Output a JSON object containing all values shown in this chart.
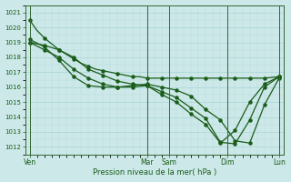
{
  "xlabel": "Pression niveau de la mer( hPa )",
  "ylim": [
    1011.5,
    1021.5
  ],
  "yticks": [
    1012,
    1013,
    1014,
    1015,
    1016,
    1017,
    1018,
    1019,
    1020,
    1021
  ],
  "bg_color": "#cce8e8",
  "grid_major_color": "#aad4d4",
  "grid_minor_color": "#bbdddd",
  "line_color": "#1a5c1a",
  "spine_color": "#336633",
  "xlim": [
    -0.3,
    17.3
  ],
  "xtick_positions": [
    0.0,
    8.0,
    9.5,
    13.5,
    17.0
  ],
  "xtick_labels": [
    "Ven",
    "Mar",
    "Sam",
    "Dim",
    "Lun"
  ],
  "vline_positions": [
    0.0,
    8.0,
    9.5,
    13.5,
    17.0
  ],
  "line1_x": [
    0,
    0.5,
    1.0,
    1.5,
    2.0,
    2.5,
    3.0,
    3.5,
    4.0,
    4.5,
    5.0,
    5.5,
    6.0,
    6.5,
    7.0,
    7.5,
    8.0,
    8.5,
    9.0,
    9.5,
    10.0,
    10.5,
    11.0,
    11.5,
    12.0,
    12.5,
    13.0,
    13.5,
    14.0,
    14.5,
    15.0,
    15.5,
    16.0,
    16.5,
    17.0
  ],
  "line1_y": [
    1020.5,
    1019.8,
    1019.3,
    1018.9,
    1018.5,
    1018.2,
    1017.9,
    1017.6,
    1017.4,
    1017.2,
    1017.1,
    1017.0,
    1016.9,
    1016.8,
    1016.7,
    1016.7,
    1016.6,
    1016.6,
    1016.6,
    1016.6,
    1016.6,
    1016.6,
    1016.6,
    1016.6,
    1016.6,
    1016.6,
    1016.6,
    1016.6,
    1016.6,
    1016.6,
    1016.6,
    1016.6,
    1016.6,
    1016.65,
    1016.7
  ],
  "line2_x": [
    0,
    1,
    2,
    3,
    4,
    5,
    6,
    7,
    8,
    9,
    10,
    11,
    12,
    13,
    14,
    15,
    16,
    17
  ],
  "line2_y": [
    1019.2,
    1018.7,
    1017.8,
    1016.7,
    1016.1,
    1016.0,
    1016.0,
    1016.1,
    1016.2,
    1016.0,
    1015.8,
    1015.4,
    1014.5,
    1013.8,
    1012.4,
    1012.25,
    1014.8,
    1016.6
  ],
  "line3_x": [
    0,
    1,
    2,
    3,
    4,
    5,
    6,
    7,
    8,
    9,
    10,
    11,
    12,
    13,
    14,
    15,
    16,
    17
  ],
  "line3_y": [
    1019.0,
    1018.5,
    1018.0,
    1017.2,
    1016.6,
    1016.2,
    1016.0,
    1016.0,
    1016.1,
    1015.7,
    1015.3,
    1014.6,
    1013.9,
    1012.3,
    1012.2,
    1013.8,
    1016.0,
    1016.7
  ],
  "line4_x": [
    0,
    1,
    2,
    3,
    4,
    5,
    6,
    7,
    8,
    9,
    10,
    11,
    12,
    13,
    14,
    15,
    16,
    17
  ],
  "line4_y": [
    1019.0,
    1018.8,
    1018.5,
    1018.0,
    1017.2,
    1016.8,
    1016.4,
    1016.2,
    1016.1,
    1015.5,
    1015.0,
    1014.2,
    1013.5,
    1012.25,
    1013.1,
    1015.0,
    1016.2,
    1016.7
  ]
}
